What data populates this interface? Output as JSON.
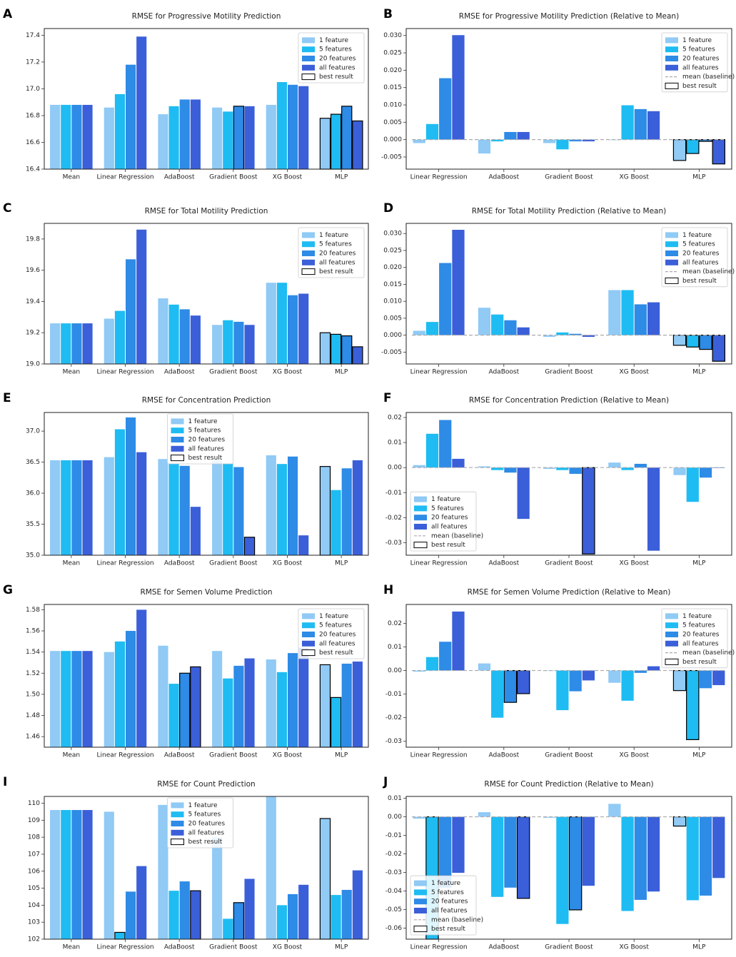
{
  "figure": {
    "legend_labels": [
      "1 feature",
      "5 features",
      "20 features",
      "all features"
    ],
    "baseline_label": "mean (baseline)",
    "best_label": "best result",
    "colors": [
      "#90caf5",
      "#1ebcf2",
      "#2e8be6",
      "#3b5fd9"
    ],
    "baseline_color": "#aaaaaa",
    "best_edge_color": "#000000"
  },
  "chart_data": [
    {
      "panel": "A",
      "type": "bar",
      "title": "RMSE for Progressive Motility Prediction",
      "categories": [
        "Mean",
        "Linear Regression",
        "AdaBoost",
        "Gradient Boost",
        "XG Boost",
        "MLP"
      ],
      "ylim": [
        16.4,
        17.45
      ],
      "yticks": [
        "16.4",
        "16.6",
        "16.8",
        "17.0",
        "17.2",
        "17.4"
      ],
      "series": [
        {
          "name": "1 feature",
          "values": [
            16.88,
            16.86,
            16.81,
            16.86,
            16.88,
            16.78
          ]
        },
        {
          "name": "5 features",
          "values": [
            16.88,
            16.96,
            16.87,
            16.83,
            17.05,
            16.81
          ]
        },
        {
          "name": "20 features",
          "values": [
            16.88,
            17.18,
            16.92,
            16.87,
            17.03,
            16.87
          ]
        },
        {
          "name": "all features",
          "values": [
            16.88,
            17.39,
            16.92,
            16.87,
            17.02,
            16.76
          ]
        }
      ],
      "best": [
        [
          5,
          0
        ],
        [
          5,
          1
        ],
        [
          5,
          2
        ],
        [
          5,
          3
        ],
        [
          3,
          2
        ]
      ],
      "legend_pos": "top-right",
      "baseline": false
    },
    {
      "panel": "B",
      "type": "bar",
      "title": "RMSE for Progressive Motility Prediction (Relative to Mean)",
      "categories": [
        "Linear Regression",
        "AdaBoost",
        "Gradient Boost",
        "XG Boost",
        "MLP"
      ],
      "ylim": [
        -0.0085,
        0.032
      ],
      "yticks": [
        "-0.005",
        "0.000",
        "0.005",
        "0.010",
        "0.015",
        "0.020",
        "0.025",
        "0.030"
      ],
      "series": [
        {
          "name": "1 feature",
          "values": [
            -0.001,
            -0.004,
            -0.001,
            0.0,
            -0.006
          ]
        },
        {
          "name": "5 features",
          "values": [
            0.0045,
            -0.0005,
            -0.0028,
            0.0099,
            -0.004
          ]
        },
        {
          "name": "20 features",
          "values": [
            0.0177,
            0.0022,
            -0.0005,
            0.0088,
            -0.0005
          ]
        },
        {
          "name": "all features",
          "values": [
            0.0301,
            0.0022,
            -0.0005,
            0.0082,
            -0.007
          ]
        }
      ],
      "best": [
        [
          4,
          0
        ],
        [
          4,
          1
        ],
        [
          4,
          2
        ],
        [
          4,
          3
        ]
      ],
      "legend_pos": "top-right",
      "baseline": true
    },
    {
      "panel": "C",
      "type": "bar",
      "title": "RMSE for Total Motility Prediction",
      "categories": [
        "Mean",
        "Linear Regression",
        "AdaBoost",
        "Gradient Boost",
        "XG Boost",
        "MLP"
      ],
      "ylim": [
        19.0,
        19.9
      ],
      "yticks": [
        "19.0",
        "19.2",
        "19.4",
        "19.6",
        "19.8"
      ],
      "series": [
        {
          "name": "1 feature",
          "values": [
            19.26,
            19.29,
            19.42,
            19.25,
            19.52,
            19.2
          ]
        },
        {
          "name": "5 features",
          "values": [
            19.26,
            19.34,
            19.38,
            19.28,
            19.52,
            19.19
          ]
        },
        {
          "name": "20 features",
          "values": [
            19.26,
            19.67,
            19.35,
            19.27,
            19.44,
            19.18
          ]
        },
        {
          "name": "all features",
          "values": [
            19.26,
            19.86,
            19.31,
            19.25,
            19.45,
            19.11
          ]
        }
      ],
      "best": [
        [
          5,
          0
        ],
        [
          5,
          1
        ],
        [
          5,
          2
        ],
        [
          5,
          3
        ]
      ],
      "legend_pos": "top-right",
      "baseline": false
    },
    {
      "panel": "D",
      "type": "bar",
      "title": "RMSE for Total Motility Prediction (Relative to Mean)",
      "categories": [
        "Linear Regression",
        "AdaBoost",
        "Gradient Boost",
        "XG Boost",
        "MLP"
      ],
      "ylim": [
        -0.0085,
        0.033
      ],
      "yticks": [
        "-0.005",
        "0.000",
        "0.005",
        "0.010",
        "0.015",
        "0.020",
        "0.025",
        "0.030"
      ],
      "series": [
        {
          "name": "1 feature",
          "values": [
            0.0013,
            0.0081,
            -0.0005,
            0.0133,
            -0.003
          ]
        },
        {
          "name": "5 features",
          "values": [
            0.0039,
            0.0061,
            0.0008,
            0.0133,
            -0.0035
          ]
        },
        {
          "name": "20 features",
          "values": [
            0.0213,
            0.0044,
            0.0004,
            0.0091,
            -0.0042
          ]
        },
        {
          "name": "all features",
          "values": [
            0.0311,
            0.0023,
            -0.0005,
            0.0097,
            -0.0077
          ]
        }
      ],
      "best": [
        [
          4,
          0
        ],
        [
          4,
          1
        ],
        [
          4,
          2
        ],
        [
          4,
          3
        ]
      ],
      "legend_pos": "top-right",
      "baseline": true
    },
    {
      "panel": "E",
      "type": "bar",
      "title": "RMSE for Concentration Prediction",
      "categories": [
        "Mean",
        "Linear Regression",
        "AdaBoost",
        "Gradient Boost",
        "XG Boost",
        "MLP"
      ],
      "ylim": [
        35.0,
        37.3
      ],
      "yticks": [
        "35.0",
        "35.5",
        "36.0",
        "36.5",
        "37.0"
      ],
      "series": [
        {
          "name": "1 feature",
          "values": [
            36.53,
            36.58,
            36.55,
            36.53,
            36.61,
            36.43
          ]
        },
        {
          "name": "5 features",
          "values": [
            36.53,
            37.03,
            36.48,
            36.48,
            36.47,
            36.05
          ]
        },
        {
          "name": "20 features",
          "values": [
            36.53,
            37.22,
            36.44,
            36.42,
            36.59,
            36.4
          ]
        },
        {
          "name": "all features",
          "values": [
            36.53,
            36.66,
            35.78,
            35.29,
            35.32,
            36.53
          ]
        }
      ],
      "best": [
        [
          3,
          3
        ],
        [
          5,
          0
        ]
      ],
      "legend_pos": "top-center",
      "baseline": false
    },
    {
      "panel": "F",
      "type": "bar",
      "title": "RMSE for Concentration Prediction (Relative to Mean)",
      "categories": [
        "Linear Regression",
        "AdaBoost",
        "Gradient Boost",
        "XG Boost",
        "MLP"
      ],
      "ylim": [
        -0.035,
        0.022
      ],
      "yticks": [
        "-0.03",
        "-0.02",
        "-0.01",
        "0.00",
        "0.01",
        "0.02"
      ],
      "series": [
        {
          "name": "1 feature",
          "values": [
            0.001,
            0.0005,
            -0.0005,
            0.002,
            -0.003
          ]
        },
        {
          "name": "5 features",
          "values": [
            0.0135,
            -0.001,
            -0.001,
            -0.001,
            -0.0137
          ]
        },
        {
          "name": "20 features",
          "values": [
            0.019,
            -0.002,
            -0.0025,
            0.0015,
            -0.004
          ]
        },
        {
          "name": "all features",
          "values": [
            0.0035,
            -0.0205,
            -0.0345,
            -0.0332,
            0.0
          ]
        }
      ],
      "best": [
        [
          2,
          3
        ]
      ],
      "legend_pos": "bottom-left",
      "baseline": true
    },
    {
      "panel": "G",
      "type": "bar",
      "title": "RMSE for Semen Volume Prediction",
      "categories": [
        "Mean",
        "Linear Regression",
        "AdaBoost",
        "Gradient Boost",
        "XG Boost",
        "MLP"
      ],
      "ylim": [
        1.45,
        1.585
      ],
      "yticks": [
        "1.46",
        "1.48",
        "1.50",
        "1.52",
        "1.54",
        "1.56",
        "1.58"
      ],
      "series": [
        {
          "name": "1 feature",
          "values": [
            1.541,
            1.54,
            1.546,
            1.541,
            1.533,
            1.528
          ]
        },
        {
          "name": "5 features",
          "values": [
            1.541,
            1.55,
            1.51,
            1.515,
            1.521,
            1.497
          ]
        },
        {
          "name": "20 features",
          "values": [
            1.541,
            1.56,
            1.52,
            1.527,
            1.539,
            1.529
          ]
        },
        {
          "name": "all features",
          "values": [
            1.541,
            1.58,
            1.526,
            1.534,
            1.544,
            1.531
          ]
        }
      ],
      "best": [
        [
          5,
          0
        ],
        [
          5,
          1
        ],
        [
          2,
          2
        ],
        [
          2,
          3
        ]
      ],
      "legend_pos": "top-right",
      "baseline": false
    },
    {
      "panel": "H",
      "type": "bar",
      "title": "RMSE for Semen Volume Prediction (Relative to Mean)",
      "categories": [
        "Linear Regression",
        "AdaBoost",
        "Gradient Boost",
        "XG Boost",
        "MLP"
      ],
      "ylim": [
        -0.0325,
        0.028
      ],
      "yticks": [
        "-0.03",
        "-0.02",
        "-0.01",
        "0.00",
        "0.01",
        "0.02"
      ],
      "series": [
        {
          "name": "1 feature",
          "values": [
            -0.0005,
            0.003,
            0.0,
            -0.0052,
            -0.0085
          ]
        },
        {
          "name": "5 features",
          "values": [
            0.0057,
            -0.02,
            -0.0168,
            -0.0128,
            -0.0293
          ]
        },
        {
          "name": "20 features",
          "values": [
            0.0122,
            -0.0135,
            -0.0088,
            -0.001,
            -0.0075
          ]
        },
        {
          "name": "all features",
          "values": [
            0.025,
            -0.0098,
            -0.0042,
            0.0018,
            -0.0062
          ]
        }
      ],
      "best": [
        [
          1,
          2
        ],
        [
          1,
          3
        ],
        [
          4,
          0
        ],
        [
          4,
          1
        ]
      ],
      "legend_pos": "top-right",
      "baseline": true
    },
    {
      "panel": "I",
      "type": "bar",
      "title": "RMSE for Count Prediction",
      "categories": [
        "Mean",
        "Linear Regression",
        "AdaBoost",
        "Gradient Boost",
        "XG Boost",
        "MLP"
      ],
      "ylim": [
        102.0,
        110.4
      ],
      "yticks": [
        "102",
        "103",
        "104",
        "105",
        "106",
        "107",
        "108",
        "109",
        "110"
      ],
      "series": [
        {
          "name": "1 feature",
          "values": [
            109.6,
            109.5,
            109.9,
            108.0,
            110.4,
            109.1
          ]
        },
        {
          "name": "5 features",
          "values": [
            109.6,
            102.4,
            104.85,
            103.2,
            104.0,
            104.6
          ]
        },
        {
          "name": "20 features",
          "values": [
            109.6,
            104.8,
            105.4,
            104.15,
            104.65,
            104.9
          ]
        },
        {
          "name": "all features",
          "values": [
            109.6,
            106.3,
            104.85,
            105.55,
            105.2,
            106.05
          ]
        }
      ],
      "best": [
        [
          1,
          1
        ],
        [
          2,
          3
        ],
        [
          3,
          2
        ],
        [
          5,
          0
        ]
      ],
      "legend_pos": "top-center",
      "baseline": false
    },
    {
      "panel": "J",
      "type": "bar",
      "title": "RMSE for Count Prediction (Relative to Mean)",
      "categories": [
        "Linear Regression",
        "AdaBoost",
        "Gradient Boost",
        "XG Boost",
        "MLP"
      ],
      "ylim": [
        -0.066,
        0.011
      ],
      "yticks": [
        "-0.06",
        "-0.05",
        "-0.04",
        "-0.03",
        "-0.02",
        "-0.01",
        "0.00",
        "0.01"
      ],
      "series": [
        {
          "name": "1 feature",
          "values": [
            -0.001,
            0.0025,
            -0.0005,
            0.007,
            -0.005
          ]
        },
        {
          "name": "5 features",
          "values": [
            -0.066,
            -0.0432,
            -0.0578,
            -0.0508,
            -0.045
          ]
        },
        {
          "name": "20 features",
          "values": [
            -0.0382,
            -0.0382,
            -0.0502,
            -0.0448,
            -0.0425
          ]
        },
        {
          "name": "all features",
          "values": [
            -0.0302,
            -0.044,
            -0.0372,
            -0.0403,
            -0.033
          ]
        }
      ],
      "best": [
        [
          0,
          1
        ],
        [
          1,
          3
        ],
        [
          2,
          2
        ],
        [
          4,
          0
        ]
      ],
      "legend_pos": "bottom-left",
      "baseline": true
    }
  ]
}
